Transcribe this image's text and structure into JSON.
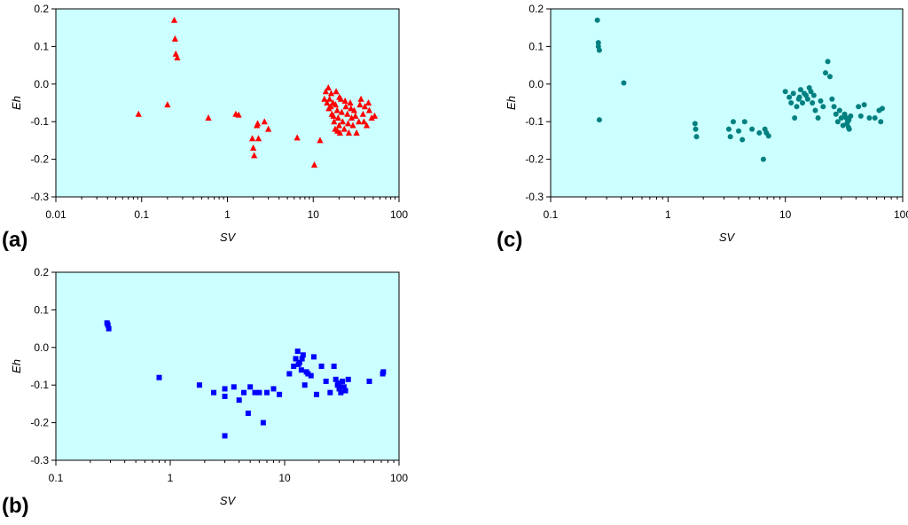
{
  "chart_data": [
    {
      "id": "a",
      "type": "scatter",
      "panel_label": "(a)",
      "xlabel": "SV",
      "ylabel": "Eh",
      "xscale": "log",
      "xlim": [
        0.01,
        100
      ],
      "ylim": [
        -0.3,
        0.2
      ],
      "xticks": [
        0.01,
        0.1,
        1,
        10,
        100
      ],
      "xtick_labels": [
        "0.01",
        "0.1",
        "1",
        "10",
        "100"
      ],
      "yticks": [
        -0.3,
        -0.2,
        -0.1,
        0.0,
        0.1,
        0.2
      ],
      "ytick_labels": [
        "-0.3",
        "-0.2",
        "-0.1",
        "0.0",
        "0.1",
        "0.2"
      ],
      "marker": "triangle",
      "color": "#ff0000",
      "background": "#ccffff",
      "points": [
        [
          0.092,
          -0.08
        ],
        [
          0.2,
          -0.055
        ],
        [
          0.24,
          0.17
        ],
        [
          0.245,
          0.12
        ],
        [
          0.25,
          0.08
        ],
        [
          0.26,
          0.07
        ],
        [
          0.6,
          -0.09
        ],
        [
          1.25,
          -0.08
        ],
        [
          1.35,
          -0.082
        ],
        [
          1.95,
          -0.145
        ],
        [
          2.0,
          -0.17
        ],
        [
          2.05,
          -0.19
        ],
        [
          2.2,
          -0.11
        ],
        [
          2.25,
          -0.105
        ],
        [
          2.3,
          -0.145
        ],
        [
          2.7,
          -0.1
        ],
        [
          3.0,
          -0.12
        ],
        [
          6.5,
          -0.143
        ],
        [
          10.3,
          -0.215
        ],
        [
          12.0,
          -0.15
        ],
        [
          13.5,
          -0.04
        ],
        [
          14.0,
          -0.02
        ],
        [
          14.5,
          -0.05
        ],
        [
          15.0,
          -0.01
        ],
        [
          15.5,
          -0.04
        ],
        [
          16.0,
          -0.06
        ],
        [
          16.5,
          -0.08
        ],
        [
          17.0,
          -0.05
        ],
        [
          17.5,
          -0.1
        ],
        [
          18.0,
          -0.12
        ],
        [
          18.5,
          -0.02
        ],
        [
          19.0,
          -0.07
        ],
        [
          19.5,
          -0.09
        ],
        [
          20.0,
          -0.11
        ],
        [
          20.5,
          -0.13
        ],
        [
          21.0,
          -0.04
        ],
        [
          22.0,
          -0.1
        ],
        [
          23.0,
          -0.12
        ],
        [
          24.0,
          -0.06
        ],
        [
          25.0,
          -0.08
        ],
        [
          26.0,
          -0.13
        ],
        [
          27.0,
          -0.05
        ],
        [
          28.0,
          -0.09
        ],
        [
          29.0,
          -0.11
        ],
        [
          30.0,
          -0.07
        ],
        [
          32.0,
          -0.13
        ],
        [
          34.0,
          -0.1
        ],
        [
          36.0,
          -0.04
        ],
        [
          38.0,
          -0.08
        ],
        [
          40.0,
          -0.06
        ],
        [
          42.0,
          -0.11
        ],
        [
          45.0,
          -0.07
        ],
        [
          48.0,
          -0.09
        ],
        [
          52.0,
          -0.085
        ],
        [
          15.2,
          -0.065
        ],
        [
          16.2,
          -0.025
        ],
        [
          17.2,
          -0.085
        ],
        [
          18.2,
          -0.055
        ],
        [
          19.2,
          -0.125
        ],
        [
          20.2,
          -0.035
        ],
        [
          21.5,
          -0.075
        ],
        [
          23.5,
          -0.045
        ],
        [
          25.5,
          -0.105
        ],
        [
          27.5,
          -0.065
        ],
        [
          31.0,
          -0.085
        ],
        [
          35.0,
          -0.055
        ],
        [
          39.0,
          -0.1
        ],
        [
          44.0,
          -0.05
        ]
      ]
    },
    {
      "id": "b",
      "type": "scatter",
      "panel_label": "(b)",
      "xlabel": "SV",
      "ylabel": "Eh",
      "xscale": "log",
      "xlim": [
        0.1,
        100
      ],
      "ylim": [
        -0.3,
        0.2
      ],
      "xticks": [
        0.1,
        1,
        10,
        100
      ],
      "xtick_labels": [
        "0.1",
        "1",
        "10",
        "100"
      ],
      "yticks": [
        -0.3,
        -0.2,
        -0.1,
        0.0,
        0.1,
        0.2
      ],
      "ytick_labels": [
        "-0.3",
        "-0.2",
        "-0.1",
        "0.0",
        "0.1",
        "0.2"
      ],
      "marker": "square",
      "color": "#0000ff",
      "background": "#ccffff",
      "points": [
        [
          0.28,
          0.065
        ],
        [
          0.285,
          0.06
        ],
        [
          0.29,
          0.05
        ],
        [
          0.8,
          -0.08
        ],
        [
          1.8,
          -0.1
        ],
        [
          2.4,
          -0.12
        ],
        [
          3.0,
          -0.13
        ],
        [
          3.0,
          -0.11
        ],
        [
          3.0,
          -0.235
        ],
        [
          3.6,
          -0.105
        ],
        [
          4.0,
          -0.14
        ],
        [
          4.4,
          -0.12
        ],
        [
          4.8,
          -0.175
        ],
        [
          5.0,
          -0.105
        ],
        [
          5.5,
          -0.12
        ],
        [
          6.0,
          -0.12
        ],
        [
          6.5,
          -0.2
        ],
        [
          7.0,
          -0.12
        ],
        [
          8.0,
          -0.11
        ],
        [
          9.0,
          -0.125
        ],
        [
          11.0,
          -0.07
        ],
        [
          12.0,
          -0.05
        ],
        [
          12.5,
          -0.03
        ],
        [
          13.0,
          -0.01
        ],
        [
          13.5,
          -0.04
        ],
        [
          14.0,
          -0.06
        ],
        [
          14.5,
          -0.02
        ],
        [
          15.0,
          -0.1
        ],
        [
          15.5,
          -0.065
        ],
        [
          16.0,
          -0.07
        ],
        [
          17.0,
          -0.075
        ],
        [
          18.0,
          -0.025
        ],
        [
          19.0,
          -0.125
        ],
        [
          21.0,
          -0.05
        ],
        [
          23.0,
          -0.09
        ],
        [
          25.0,
          -0.12
        ],
        [
          27.0,
          -0.05
        ],
        [
          28.0,
          -0.085
        ],
        [
          29.0,
          -0.1
        ],
        [
          30.0,
          -0.11
        ],
        [
          31.0,
          -0.12
        ],
        [
          32.0,
          -0.09
        ],
        [
          33.0,
          -0.105
        ],
        [
          34.0,
          -0.115
        ],
        [
          36.0,
          -0.085
        ],
        [
          55.0,
          -0.09
        ],
        [
          72.0,
          -0.07
        ],
        [
          73.0,
          -0.065
        ],
        [
          13.2,
          -0.045
        ],
        [
          14.2,
          -0.03
        ],
        [
          29.5,
          -0.095
        ],
        [
          30.5,
          -0.105
        ]
      ]
    },
    {
      "id": "c",
      "type": "scatter",
      "panel_label": "(c)",
      "xlabel": "SV",
      "ylabel": "Eh",
      "xscale": "log",
      "xlim": [
        0.1,
        100
      ],
      "ylim": [
        -0.3,
        0.2
      ],
      "xticks": [
        0.1,
        1,
        10,
        100
      ],
      "xtick_labels": [
        "0.1",
        "1",
        "10",
        "100"
      ],
      "yticks": [
        -0.3,
        -0.2,
        -0.1,
        0.0,
        0.1,
        0.2
      ],
      "ytick_labels": [
        "-0.3",
        "-0.2",
        "-0.1",
        "0.0",
        "0.1",
        "0.2"
      ],
      "marker": "circle",
      "color": "#008080",
      "background": "#ccffff",
      "points": [
        [
          0.25,
          0.17
        ],
        [
          0.255,
          0.11
        ],
        [
          0.255,
          0.1
        ],
        [
          0.26,
          0.09
        ],
        [
          0.26,
          -0.095
        ],
        [
          0.42,
          0.003
        ],
        [
          1.7,
          -0.105
        ],
        [
          1.72,
          -0.12
        ],
        [
          1.75,
          -0.14
        ],
        [
          3.3,
          -0.12
        ],
        [
          3.4,
          -0.14
        ],
        [
          3.6,
          -0.1
        ],
        [
          4.0,
          -0.125
        ],
        [
          4.3,
          -0.148
        ],
        [
          4.5,
          -0.1
        ],
        [
          5.2,
          -0.12
        ],
        [
          6.0,
          -0.13
        ],
        [
          6.5,
          -0.2
        ],
        [
          6.7,
          -0.12
        ],
        [
          6.9,
          -0.13
        ],
        [
          7.2,
          -0.138
        ],
        [
          10.0,
          -0.02
        ],
        [
          10.8,
          -0.035
        ],
        [
          11.2,
          -0.05
        ],
        [
          11.7,
          -0.025
        ],
        [
          12.0,
          -0.09
        ],
        [
          12.5,
          -0.06
        ],
        [
          13.0,
          -0.04
        ],
        [
          13.5,
          -0.015
        ],
        [
          14.0,
          -0.05
        ],
        [
          15.0,
          -0.03
        ],
        [
          15.5,
          -0.04
        ],
        [
          16.0,
          -0.01
        ],
        [
          16.5,
          -0.02
        ],
        [
          17.0,
          -0.05
        ],
        [
          18.0,
          -0.07
        ],
        [
          19.0,
          -0.09
        ],
        [
          20.0,
          -0.045
        ],
        [
          21.0,
          -0.06
        ],
        [
          22.0,
          0.03
        ],
        [
          23.0,
          0.06
        ],
        [
          24.0,
          0.02
        ],
        [
          25.0,
          -0.04
        ],
        [
          26.0,
          -0.06
        ],
        [
          27.0,
          -0.08
        ],
        [
          28.0,
          -0.1
        ],
        [
          29.0,
          -0.07
        ],
        [
          30.0,
          -0.09
        ],
        [
          31.0,
          -0.11
        ],
        [
          32.0,
          -0.08
        ],
        [
          33.0,
          -0.09
        ],
        [
          34.0,
          -0.1
        ],
        [
          34.5,
          -0.115
        ],
        [
          35.0,
          -0.12
        ],
        [
          36.0,
          -0.085
        ],
        [
          42.0,
          -0.06
        ],
        [
          44.0,
          -0.085
        ],
        [
          47.0,
          -0.055
        ],
        [
          52.0,
          -0.09
        ],
        [
          58.0,
          -0.09
        ],
        [
          63.0,
          -0.07
        ],
        [
          65.0,
          -0.1
        ],
        [
          67.0,
          -0.065
        ],
        [
          13.2,
          -0.035
        ],
        [
          14.5,
          -0.025
        ],
        [
          17.5,
          -0.03
        ],
        [
          33.5,
          -0.105
        ],
        [
          34.8,
          -0.095
        ]
      ]
    }
  ]
}
